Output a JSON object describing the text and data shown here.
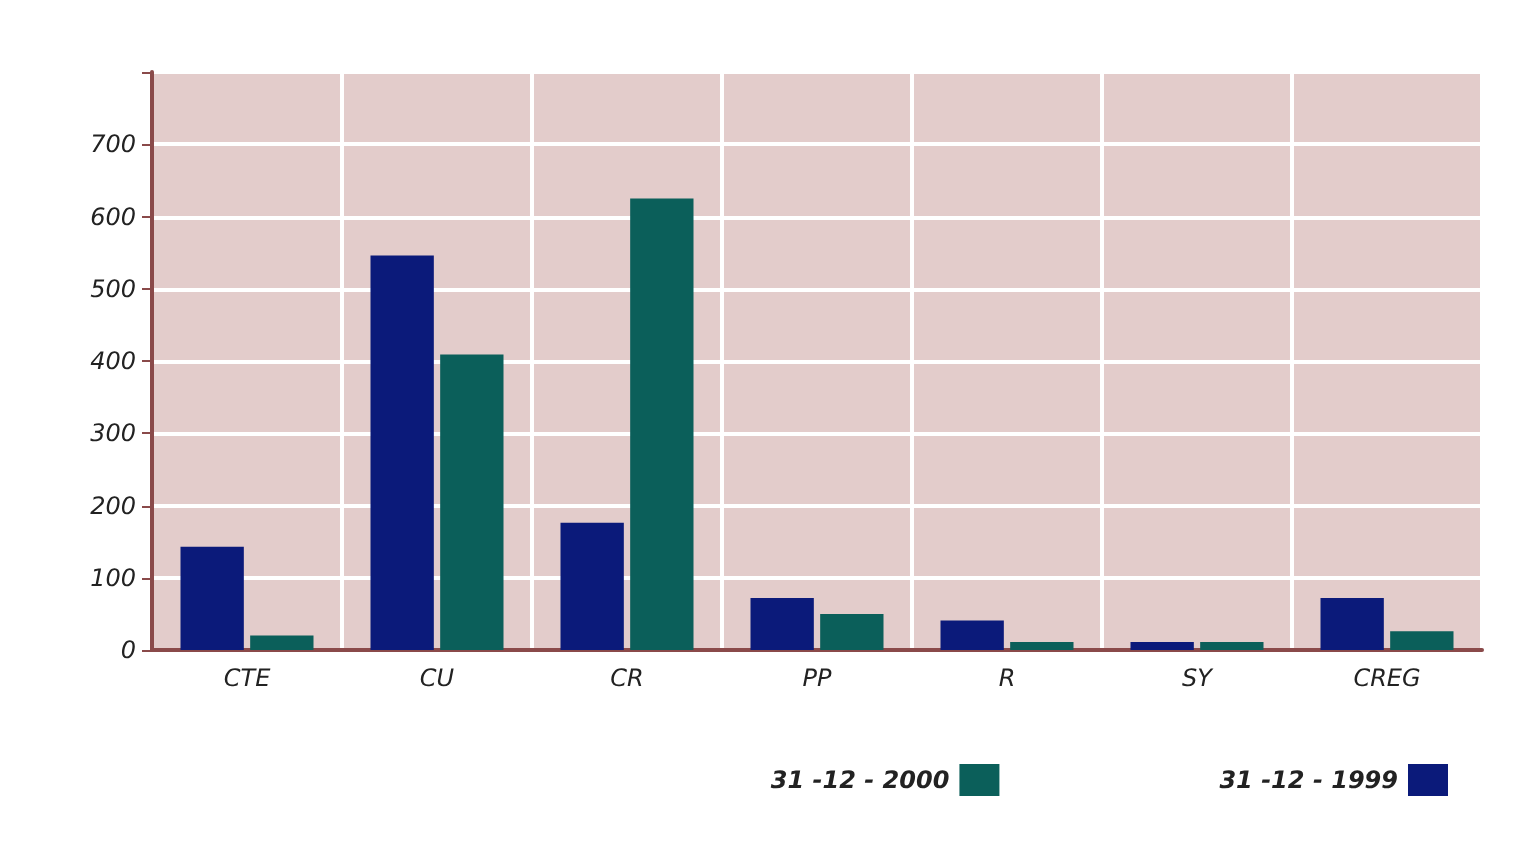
{
  "chart_data": {
    "type": "bar",
    "categories": [
      "CTE",
      "CU",
      "CR",
      "PP",
      "R",
      "SY",
      "CREG"
    ],
    "series": [
      {
        "name": "31 -12 - 1999",
        "color": "#0b1a7a",
        "values": [
          143,
          546,
          176,
          72,
          41,
          11,
          72
        ]
      },
      {
        "name": "31 -12 - 2000",
        "color": "#0b5f5a",
        "values": [
          20,
          409,
          625,
          50,
          11,
          11,
          26
        ]
      }
    ],
    "ylim": [
      0,
      800
    ],
    "yticks": [
      0,
      100,
      200,
      300,
      400,
      500,
      600,
      700,
      {
        "value": 800,
        "label": null
      }
    ],
    "grid": true,
    "legend": "bottom right"
  }
}
